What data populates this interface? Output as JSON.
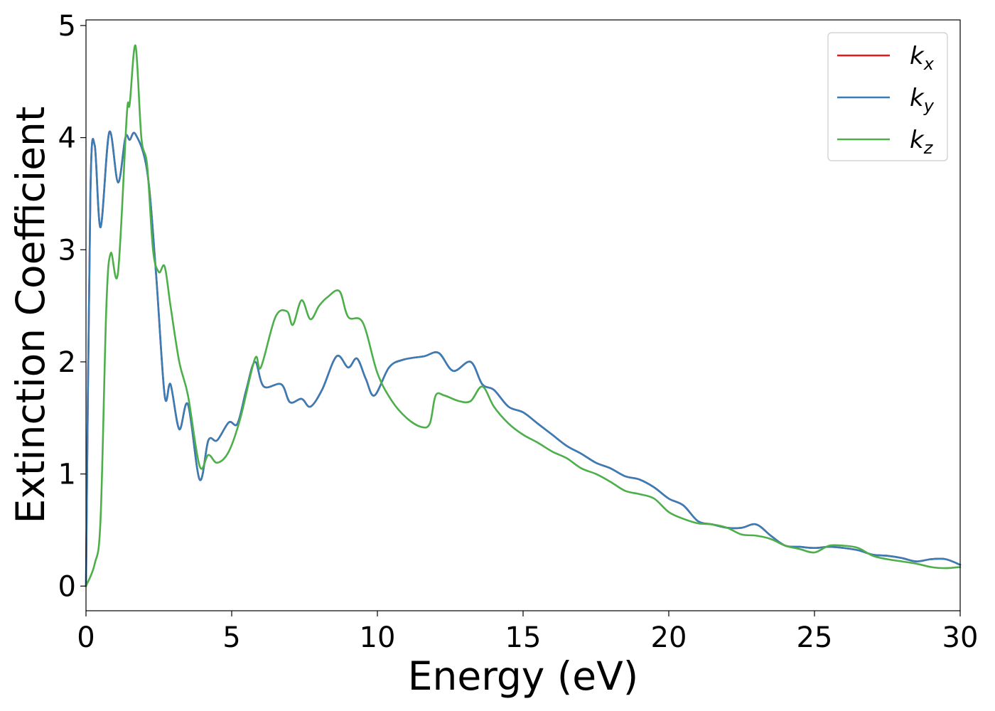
{
  "chart_data": {
    "type": "line",
    "xlabel": "Energy (eV)",
    "ylabel": "Extinction Coefficient",
    "xlim": [
      0,
      30
    ],
    "ylim": [
      -0.22,
      5.05
    ],
    "xticks": [
      "0",
      "5",
      "10",
      "15",
      "20",
      "25",
      "30"
    ],
    "yticks": [
      "0",
      "1",
      "2",
      "3",
      "4",
      "5"
    ],
    "grid": false,
    "legend_position": "top-right",
    "series": [
      {
        "name": "k_x",
        "legend_base": "k",
        "legend_sub": "x",
        "color": "#e41a1c",
        "x": [
          0,
          0.15,
          0.3,
          0.5,
          0.8,
          1.1,
          1.35,
          1.5,
          1.7,
          2.1,
          2.4,
          2.7,
          2.9,
          3.2,
          3.5,
          3.9,
          4.2,
          4.5,
          4.9,
          5.2,
          5.5,
          5.8,
          6.1,
          6.7,
          7.0,
          7.4,
          7.7,
          8.1,
          8.6,
          9.0,
          9.3,
          9.6,
          9.9,
          10.4,
          10.9,
          11.6,
          12.1,
          12.6,
          13.2,
          13.6,
          14.0,
          14.5,
          15.0,
          15.5,
          16.0,
          16.5,
          17.0,
          17.5,
          18.0,
          18.5,
          19.0,
          19.5,
          20.0,
          20.5,
          21.0,
          21.5,
          22.0,
          22.5,
          23.0,
          23.5,
          24.0,
          24.5,
          25.0,
          25.5,
          26.0,
          26.5,
          27.0,
          27.5,
          28.0,
          28.5,
          29.0,
          29.5,
          30.0
        ],
        "values": [
          0.0,
          3.5,
          3.93,
          3.2,
          4.05,
          3.6,
          4.0,
          3.98,
          4.03,
          3.7,
          2.8,
          1.7,
          1.8,
          1.4,
          1.62,
          0.95,
          1.3,
          1.3,
          1.46,
          1.45,
          1.75,
          2.0,
          1.78,
          1.8,
          1.64,
          1.67,
          1.6,
          1.75,
          2.05,
          1.95,
          2.03,
          1.85,
          1.7,
          1.95,
          2.02,
          2.05,
          2.08,
          1.92,
          2.0,
          1.8,
          1.75,
          1.6,
          1.55,
          1.45,
          1.35,
          1.25,
          1.18,
          1.1,
          1.05,
          0.98,
          0.95,
          0.88,
          0.78,
          0.72,
          0.58,
          0.55,
          0.52,
          0.52,
          0.55,
          0.45,
          0.36,
          0.35,
          0.34,
          0.35,
          0.34,
          0.32,
          0.28,
          0.27,
          0.25,
          0.22,
          0.24,
          0.24,
          0.19
        ]
      },
      {
        "name": "k_y",
        "legend_base": "k",
        "legend_sub": "y",
        "color": "#377eb8",
        "x": [
          0,
          0.15,
          0.3,
          0.5,
          0.8,
          1.1,
          1.35,
          1.5,
          1.7,
          2.1,
          2.4,
          2.7,
          2.9,
          3.2,
          3.5,
          3.9,
          4.2,
          4.5,
          4.9,
          5.2,
          5.5,
          5.8,
          6.1,
          6.7,
          7.0,
          7.4,
          7.7,
          8.1,
          8.6,
          9.0,
          9.3,
          9.6,
          9.9,
          10.4,
          10.9,
          11.6,
          12.1,
          12.6,
          13.2,
          13.6,
          14.0,
          14.5,
          15.0,
          15.5,
          16.0,
          16.5,
          17.0,
          17.5,
          18.0,
          18.5,
          19.0,
          19.5,
          20.0,
          20.5,
          21.0,
          21.5,
          22.0,
          22.5,
          23.0,
          23.5,
          24.0,
          24.5,
          25.0,
          25.5,
          26.0,
          26.5,
          27.0,
          27.5,
          28.0,
          28.5,
          29.0,
          29.5,
          30.0
        ],
        "values": [
          0.0,
          3.5,
          3.93,
          3.2,
          4.05,
          3.6,
          4.0,
          3.98,
          4.03,
          3.7,
          2.8,
          1.7,
          1.8,
          1.4,
          1.62,
          0.95,
          1.3,
          1.3,
          1.46,
          1.45,
          1.75,
          2.0,
          1.78,
          1.8,
          1.64,
          1.67,
          1.6,
          1.75,
          2.05,
          1.95,
          2.03,
          1.85,
          1.7,
          1.95,
          2.02,
          2.05,
          2.08,
          1.92,
          2.0,
          1.8,
          1.75,
          1.6,
          1.55,
          1.45,
          1.35,
          1.25,
          1.18,
          1.1,
          1.05,
          0.98,
          0.95,
          0.88,
          0.78,
          0.72,
          0.58,
          0.55,
          0.52,
          0.52,
          0.55,
          0.45,
          0.36,
          0.35,
          0.34,
          0.35,
          0.34,
          0.32,
          0.28,
          0.27,
          0.25,
          0.22,
          0.24,
          0.24,
          0.19
        ]
      },
      {
        "name": "k_z",
        "legend_base": "k",
        "legend_sub": "z",
        "color": "#4daf4a",
        "x": [
          0,
          0.3,
          0.5,
          0.7,
          0.85,
          1.1,
          1.4,
          1.5,
          1.7,
          1.9,
          2.1,
          2.3,
          2.5,
          2.7,
          2.9,
          3.2,
          3.5,
          3.9,
          4.2,
          4.5,
          4.9,
          5.3,
          5.8,
          6.0,
          6.5,
          6.9,
          7.1,
          7.4,
          7.7,
          8.0,
          8.3,
          8.7,
          9.0,
          9.5,
          10.0,
          10.5,
          11.0,
          11.5,
          11.8,
          12.0,
          12.3,
          12.8,
          13.2,
          13.6,
          14.0,
          14.5,
          15.0,
          15.5,
          16.0,
          16.5,
          17.0,
          17.5,
          18.0,
          18.5,
          19.0,
          19.5,
          20.0,
          20.5,
          21.0,
          21.5,
          22.0,
          22.5,
          23.0,
          23.5,
          24.0,
          24.5,
          25.0,
          25.5,
          26.0,
          26.5,
          27.0,
          27.5,
          28.0,
          28.5,
          29.0,
          29.5,
          30.0
        ],
        "values": [
          0.0,
          0.2,
          0.6,
          2.5,
          2.97,
          2.8,
          4.2,
          4.3,
          4.82,
          4.0,
          3.75,
          3.0,
          2.8,
          2.85,
          2.5,
          2.0,
          1.7,
          1.07,
          1.17,
          1.1,
          1.2,
          1.5,
          2.03,
          1.95,
          2.4,
          2.45,
          2.33,
          2.55,
          2.38,
          2.5,
          2.58,
          2.63,
          2.4,
          2.35,
          1.9,
          1.65,
          1.5,
          1.42,
          1.45,
          1.7,
          1.7,
          1.65,
          1.65,
          1.78,
          1.6,
          1.45,
          1.35,
          1.28,
          1.2,
          1.14,
          1.05,
          1.0,
          0.93,
          0.85,
          0.82,
          0.78,
          0.66,
          0.6,
          0.56,
          0.55,
          0.52,
          0.46,
          0.45,
          0.42,
          0.36,
          0.33,
          0.3,
          0.36,
          0.36,
          0.34,
          0.27,
          0.24,
          0.22,
          0.2,
          0.17,
          0.16,
          0.17
        ]
      }
    ]
  }
}
